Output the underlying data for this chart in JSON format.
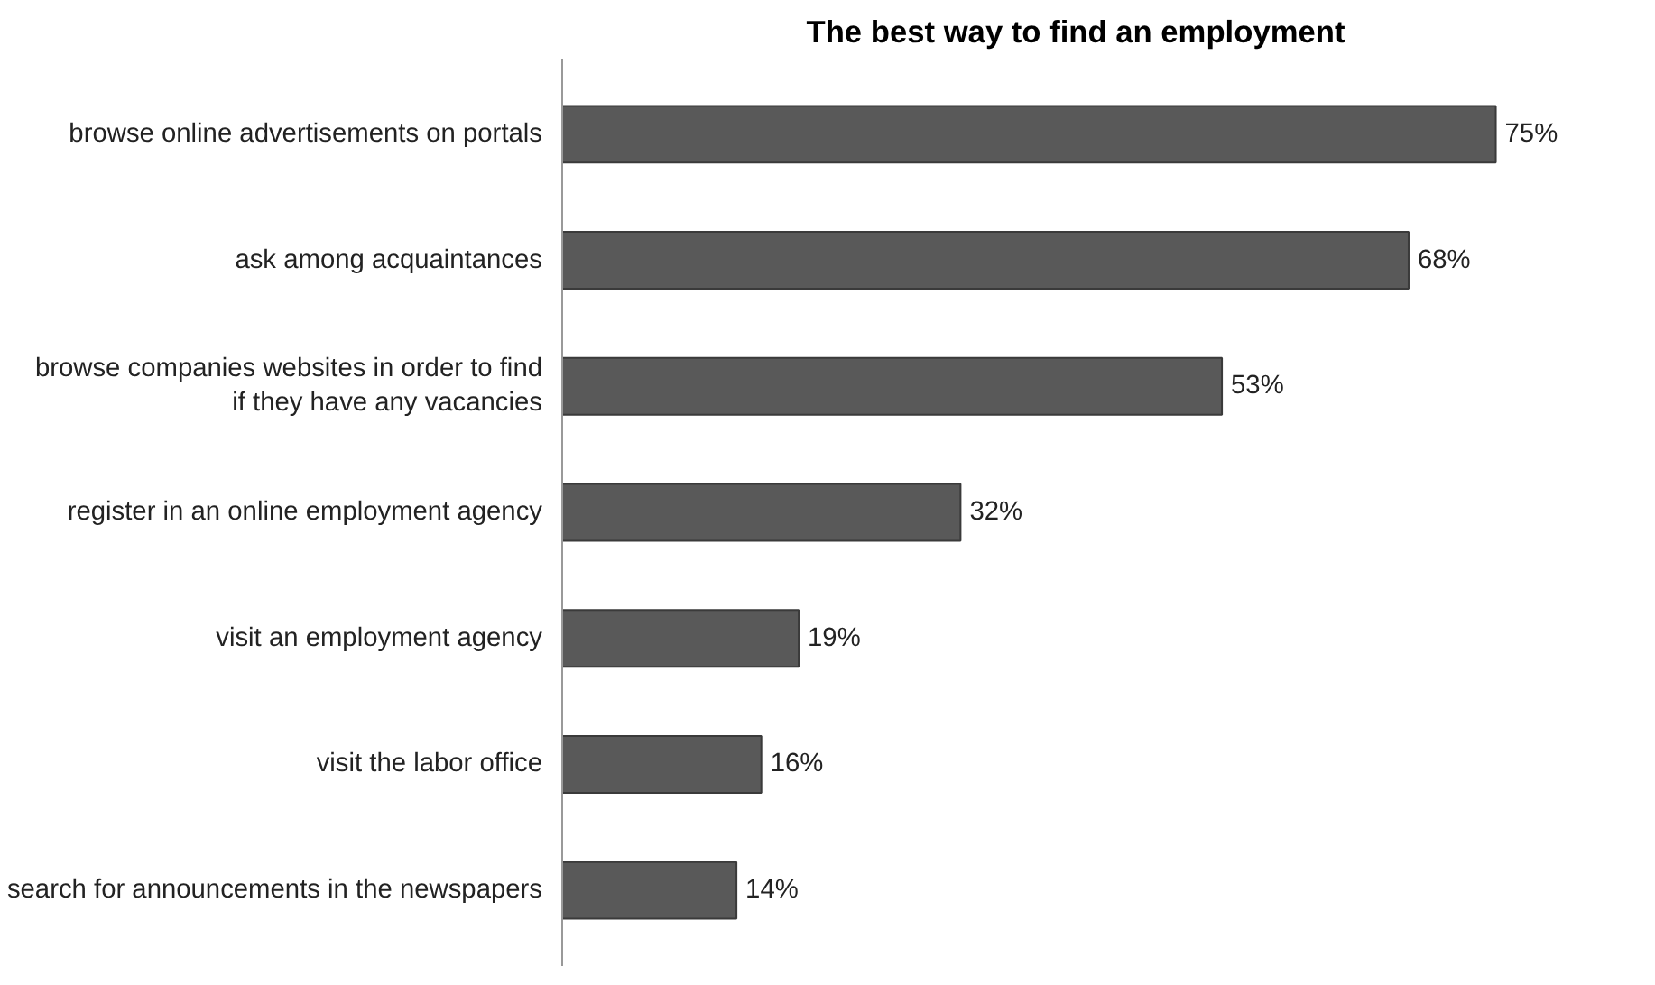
{
  "chart_data": {
    "type": "bar",
    "orientation": "horizontal",
    "title": "The best way to find an employment",
    "categories": [
      "browse online advertisements on portals",
      "ask among acquaintances",
      "browse companies websites in order to find if they have any vacancies",
      "register in an online employment agency",
      "visit an employment agency",
      "visit the labor office",
      "search for announcements in the newspapers"
    ],
    "values": [
      75,
      68,
      53,
      32,
      19,
      16,
      14
    ],
    "value_labels": [
      "75%",
      "68%",
      "53%",
      "32%",
      "19%",
      "16%",
      "14%"
    ],
    "color": "#595959",
    "tick_labels": "y",
    "grid": false
  }
}
